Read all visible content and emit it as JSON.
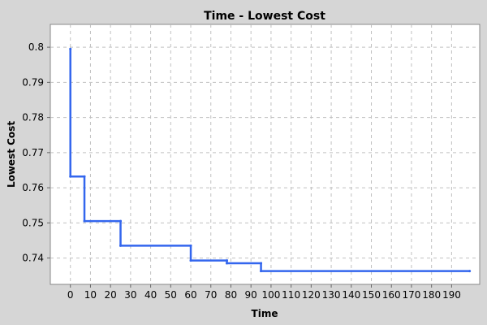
{
  "chart_data": {
    "type": "line",
    "title": "Time - Lowest Cost",
    "xlabel": "Time",
    "ylabel": "Lowest Cost",
    "xlim": [
      -10,
      204
    ],
    "ylim": [
      0.7325,
      0.8065
    ],
    "x_ticks": [
      0,
      10,
      20,
      30,
      40,
      50,
      60,
      70,
      80,
      90,
      100,
      110,
      120,
      130,
      140,
      150,
      160,
      170,
      180,
      190
    ],
    "y_ticks": [
      0.74,
      0.75,
      0.76,
      0.77,
      0.78,
      0.79,
      0.8
    ],
    "y_tick_labels": [
      "0.74",
      "0.75",
      "0.76",
      "0.77",
      "0.78",
      "0.79",
      "0.8"
    ],
    "grid": true,
    "legend": "none",
    "series": [
      {
        "color": "#3366ee",
        "x": [
          0,
          0,
          7,
          7,
          25,
          25,
          60,
          60,
          78,
          78,
          95,
          95,
          199
        ],
        "y": [
          0.7995,
          0.7632,
          0.7632,
          0.7505,
          0.7505,
          0.7435,
          0.7435,
          0.7393,
          0.7393,
          0.7385,
          0.7385,
          0.7363,
          0.7363
        ]
      }
    ],
    "colors": {
      "background": "#d6d6d6",
      "plot_background": "#ffffff",
      "grid": "#c0c0c0",
      "line": "#3366ee"
    }
  }
}
